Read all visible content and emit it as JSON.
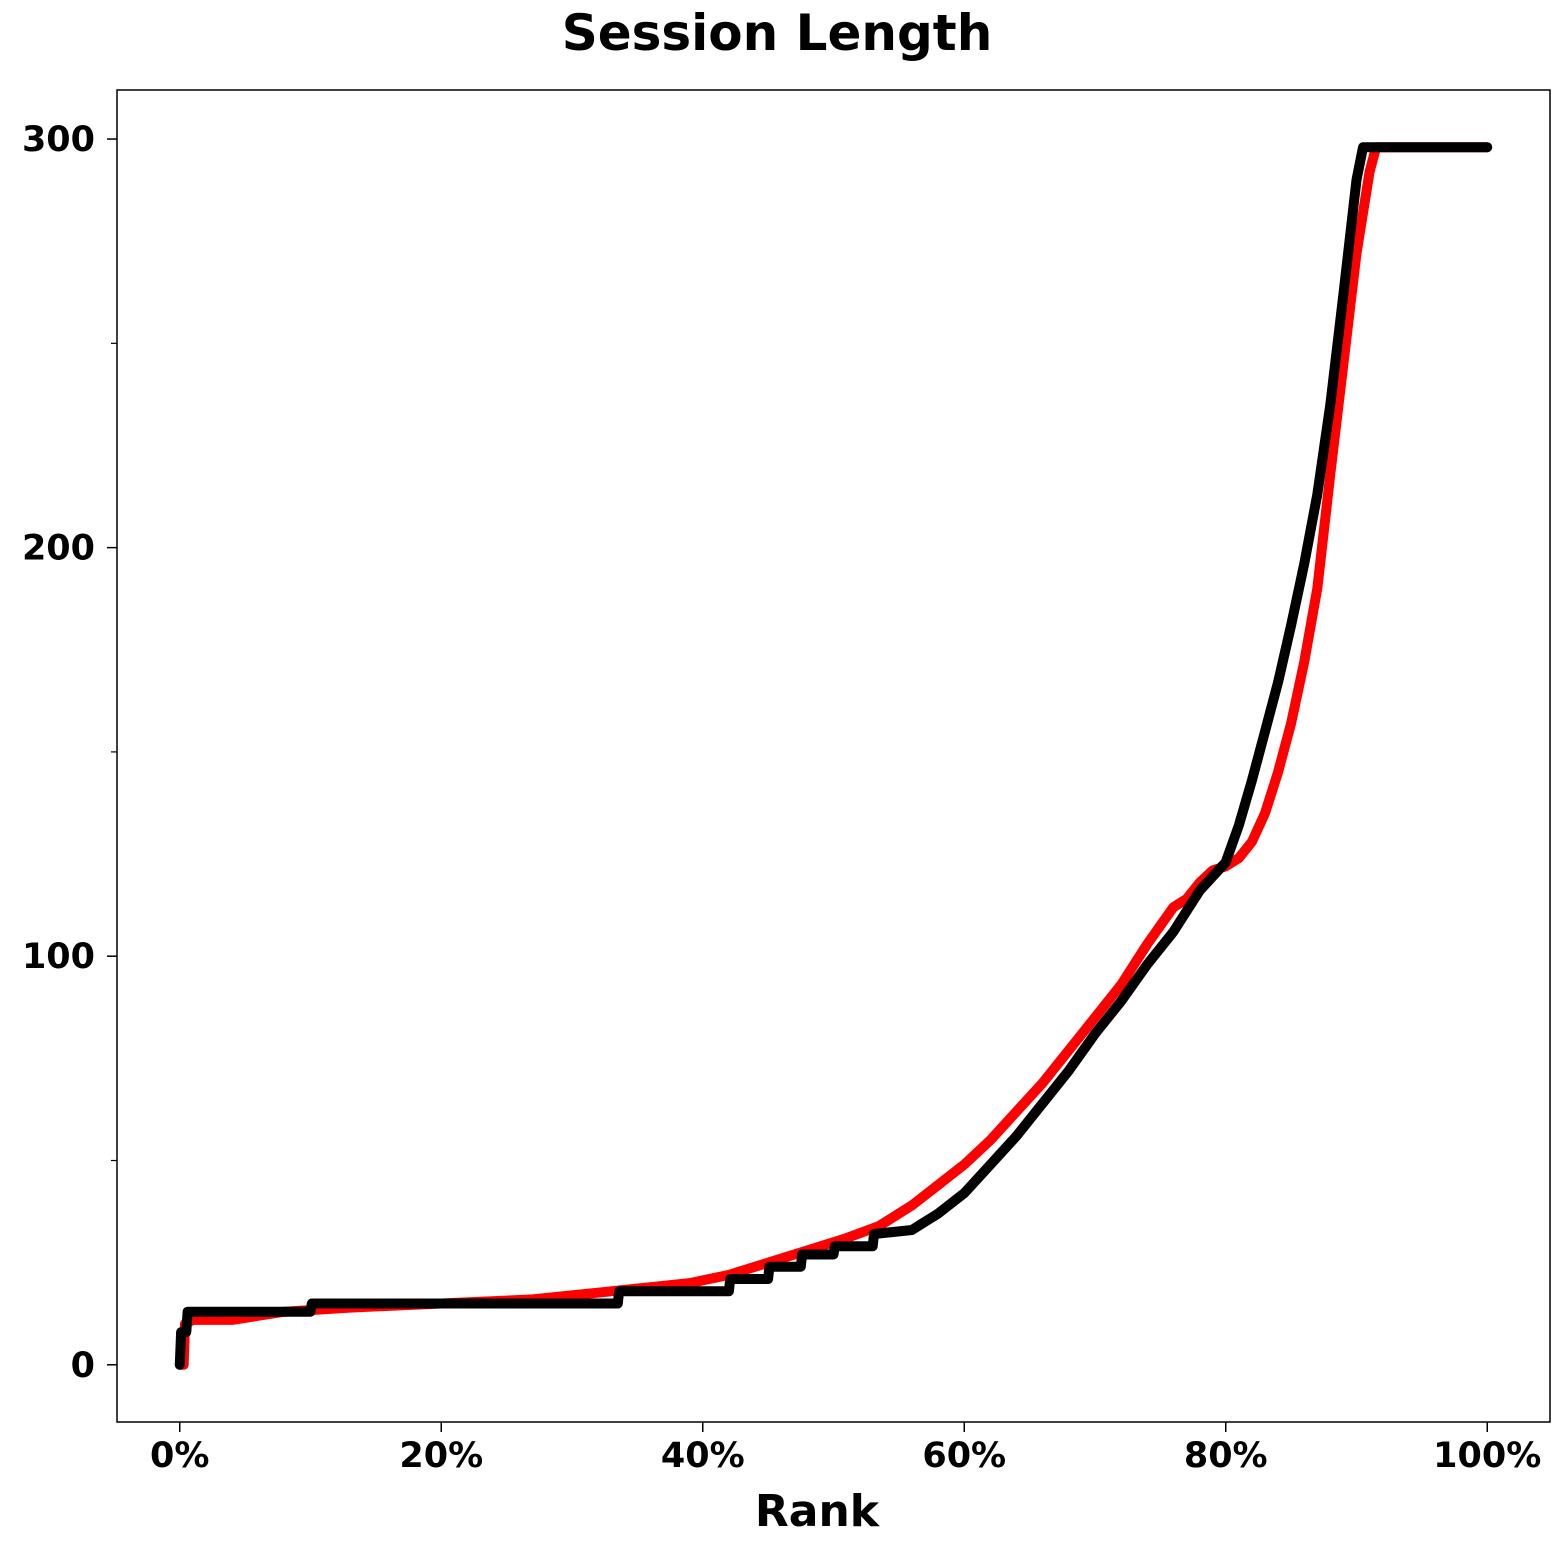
{
  "chart_data": {
    "type": "line",
    "title": "Session Length",
    "xlabel": "Rank",
    "ylabel": "",
    "xlim": [
      -0.048,
      1.048
    ],
    "ylim": [
      -14,
      312
    ],
    "x_ticks": [
      0,
      0.2,
      0.4,
      0.6,
      0.8,
      1.0
    ],
    "x_tick_labels": [
      "0%",
      "20%",
      "40%",
      "60%",
      "80%",
      "100%"
    ],
    "y_ticks": [
      0,
      100,
      200,
      300
    ],
    "y_tick_labels": [
      "0",
      "100",
      "200",
      "300"
    ],
    "y_minor_ticks": [
      50,
      150,
      250
    ],
    "grid": false,
    "legend": "none",
    "series": [
      {
        "color": "#ff0000",
        "points": [
          [
            0.0,
            0
          ],
          [
            0.003,
            0
          ],
          [
            0.004,
            10
          ],
          [
            0.01,
            11
          ],
          [
            0.04,
            11
          ],
          [
            0.08,
            13
          ],
          [
            0.13,
            14
          ],
          [
            0.2,
            15
          ],
          [
            0.27,
            16
          ],
          [
            0.3,
            17
          ],
          [
            0.33,
            18
          ],
          [
            0.36,
            19
          ],
          [
            0.39,
            20
          ],
          [
            0.42,
            22
          ],
          [
            0.45,
            25
          ],
          [
            0.48,
            28
          ],
          [
            0.51,
            31
          ],
          [
            0.535,
            34
          ],
          [
            0.56,
            39
          ],
          [
            0.58,
            44
          ],
          [
            0.6,
            49
          ],
          [
            0.62,
            55
          ],
          [
            0.64,
            62
          ],
          [
            0.66,
            69
          ],
          [
            0.68,
            77
          ],
          [
            0.7,
            85
          ],
          [
            0.72,
            93
          ],
          [
            0.74,
            103
          ],
          [
            0.76,
            112
          ],
          [
            0.77,
            114
          ],
          [
            0.78,
            118
          ],
          [
            0.79,
            121
          ],
          [
            0.8,
            122
          ],
          [
            0.81,
            124
          ],
          [
            0.82,
            128
          ],
          [
            0.83,
            135
          ],
          [
            0.84,
            145
          ],
          [
            0.85,
            157
          ],
          [
            0.86,
            172
          ],
          [
            0.87,
            190
          ],
          [
            0.88,
            218
          ],
          [
            0.89,
            245
          ],
          [
            0.9,
            272
          ],
          [
            0.91,
            292
          ],
          [
            0.915,
            298
          ],
          [
            0.93,
            298
          ],
          [
            1.0,
            298
          ]
        ]
      },
      {
        "color": "#000000",
        "points": [
          [
            0.0,
            0
          ],
          [
            0.001,
            8
          ],
          [
            0.005,
            8
          ],
          [
            0.006,
            13
          ],
          [
            0.1,
            13
          ],
          [
            0.101,
            15
          ],
          [
            0.335,
            15
          ],
          [
            0.336,
            18
          ],
          [
            0.42,
            18
          ],
          [
            0.421,
            21
          ],
          [
            0.45,
            21
          ],
          [
            0.451,
            24
          ],
          [
            0.475,
            24
          ],
          [
            0.476,
            27
          ],
          [
            0.5,
            27
          ],
          [
            0.501,
            29
          ],
          [
            0.53,
            29
          ],
          [
            0.531,
            32
          ],
          [
            0.56,
            33
          ],
          [
            0.57,
            35
          ],
          [
            0.58,
            37
          ],
          [
            0.6,
            42
          ],
          [
            0.62,
            49
          ],
          [
            0.64,
            56
          ],
          [
            0.66,
            64
          ],
          [
            0.68,
            72
          ],
          [
            0.7,
            81
          ],
          [
            0.72,
            89
          ],
          [
            0.74,
            98
          ],
          [
            0.76,
            106
          ],
          [
            0.78,
            116
          ],
          [
            0.8,
            123
          ],
          [
            0.81,
            132
          ],
          [
            0.82,
            143
          ],
          [
            0.83,
            155
          ],
          [
            0.84,
            167
          ],
          [
            0.85,
            181
          ],
          [
            0.86,
            196
          ],
          [
            0.87,
            213
          ],
          [
            0.88,
            235
          ],
          [
            0.89,
            262
          ],
          [
            0.9,
            290
          ],
          [
            0.905,
            298
          ],
          [
            1.0,
            298
          ]
        ]
      }
    ]
  }
}
